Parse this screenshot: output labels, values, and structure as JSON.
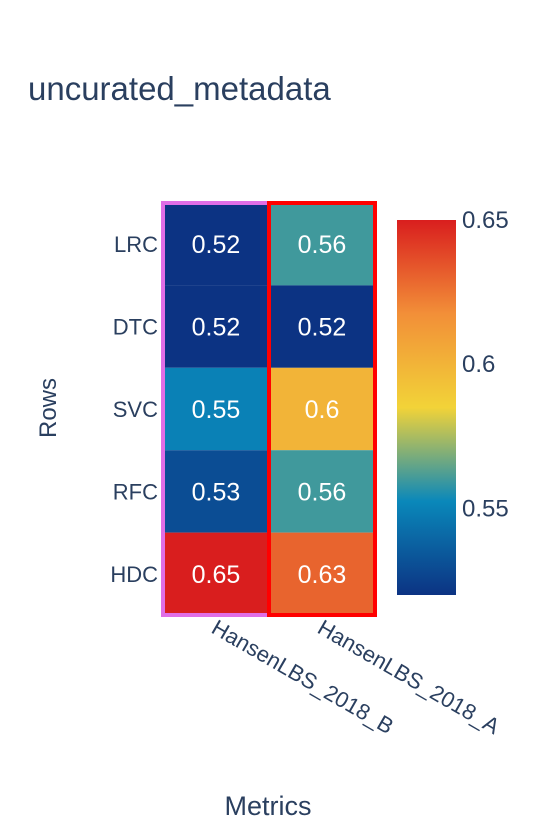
{
  "chart_data": {
    "type": "heatmap",
    "title": "uncurated_metadata",
    "xlabel": "Metrics",
    "ylabel": "Rows",
    "x": [
      "HansenLBS_2018_B",
      "HansenLBS_2018_A"
    ],
    "y": [
      "LRC",
      "DTC",
      "SVC",
      "RFC",
      "HDC"
    ],
    "z": [
      [
        0.52,
        0.56
      ],
      [
        0.52,
        0.52
      ],
      [
        0.55,
        0.6
      ],
      [
        0.53,
        0.56
      ],
      [
        0.65,
        0.63
      ]
    ],
    "colorscale": "Portland",
    "zmin": 0.52,
    "zmax": 0.65,
    "colorbar_ticks": [
      "0.65",
      "0.6",
      "0.55"
    ],
    "highlight_columns": [
      {
        "column": "HansenLBS_2018_B",
        "color": "#e06ee6"
      },
      {
        "column": "HansenLBS_2018_A",
        "color": "#ff0000"
      }
    ]
  }
}
